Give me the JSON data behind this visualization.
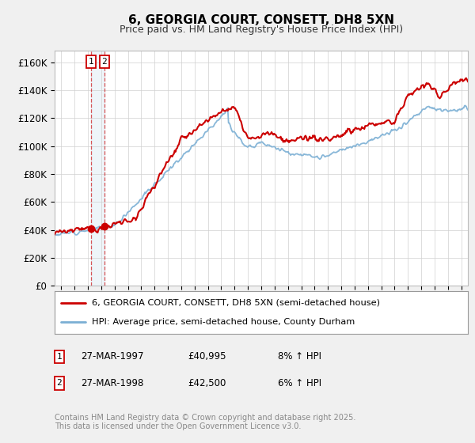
{
  "title": "6, GEORGIA COURT, CONSETT, DH8 5XN",
  "subtitle": "Price paid vs. HM Land Registry's House Price Index (HPI)",
  "ylim": [
    0,
    168000
  ],
  "yticks": [
    0,
    20000,
    40000,
    60000,
    80000,
    100000,
    120000,
    140000,
    160000
  ],
  "ytick_labels": [
    "£0",
    "£20K",
    "£40K",
    "£60K",
    "£80K",
    "£100K",
    "£120K",
    "£140K",
    "£160K"
  ],
  "xmin": 1994.5,
  "xmax": 2025.5,
  "sale_dates": [
    1997.23,
    1998.23
  ],
  "sale_prices": [
    40995,
    42500
  ],
  "sale_labels": [
    "1",
    "2"
  ],
  "legend_line1": "6, GEORGIA COURT, CONSETT, DH8 5XN (semi-detached house)",
  "legend_line2": "HPI: Average price, semi-detached house, County Durham",
  "table_rows": [
    [
      "1",
      "27-MAR-1997",
      "£40,995",
      "8% ↑ HPI"
    ],
    [
      "2",
      "27-MAR-1998",
      "£42,500",
      "6% ↑ HPI"
    ]
  ],
  "footnote1": "Contains HM Land Registry data © Crown copyright and database right 2025.",
  "footnote2": "This data is licensed under the Open Government Licence v3.0.",
  "price_color": "#cc0000",
  "hpi_color": "#7bafd4",
  "bg_color": "#f0f0f0",
  "plot_bg": "#ffffff",
  "grid_color": "#d0d0d0"
}
